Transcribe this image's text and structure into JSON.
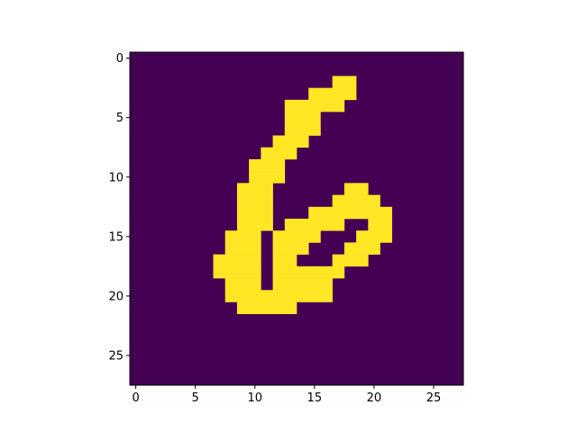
{
  "chart_data": {
    "type": "heatmap",
    "title": "",
    "xlabel": "",
    "ylabel": "",
    "rows": 28,
    "cols": 28,
    "x_ticks": [
      0,
      5,
      10,
      15,
      20,
      25
    ],
    "y_ticks": [
      0,
      5,
      10,
      15,
      20,
      25
    ],
    "xlim": [
      -0.5,
      27.5
    ],
    "ylim": [
      27.5,
      -0.5
    ],
    "colors": {
      "background": "#440154",
      "foreground": "#fde725",
      "axis": "#000000"
    },
    "pixels_by_row": {
      "2": [
        [
          17,
          18
        ]
      ],
      "3": [
        [
          15,
          18
        ]
      ],
      "4": [
        [
          13,
          17
        ]
      ],
      "5": [
        [
          13,
          15
        ]
      ],
      "6": [
        [
          13,
          15
        ]
      ],
      "7": [
        [
          12,
          14
        ]
      ],
      "8": [
        [
          11,
          13
        ]
      ],
      "9": [
        [
          10,
          12
        ]
      ],
      "10": [
        [
          10,
          12
        ]
      ],
      "11": [
        [
          9,
          11
        ],
        [
          18,
          19
        ]
      ],
      "12": [
        [
          9,
          11
        ],
        [
          17,
          20
        ]
      ],
      "13": [
        [
          9,
          11
        ],
        [
          15,
          21
        ]
      ],
      "14": [
        [
          9,
          11
        ],
        [
          13,
          17
        ],
        [
          20,
          21
        ]
      ],
      "15": [
        [
          8,
          10
        ],
        [
          12,
          15
        ],
        [
          19,
          21
        ]
      ],
      "16": [
        [
          8,
          10
        ],
        [
          12,
          14
        ],
        [
          18,
          20
        ]
      ],
      "17": [
        [
          7,
          10
        ],
        [
          12,
          13
        ],
        [
          17,
          19
        ]
      ],
      "18": [
        [
          7,
          10
        ],
        [
          12,
          17
        ]
      ],
      "19": [
        [
          8,
          10
        ],
        [
          12,
          16
        ]
      ],
      "20": [
        [
          8,
          16
        ]
      ],
      "21": [
        [
          9,
          13
        ]
      ]
    }
  }
}
